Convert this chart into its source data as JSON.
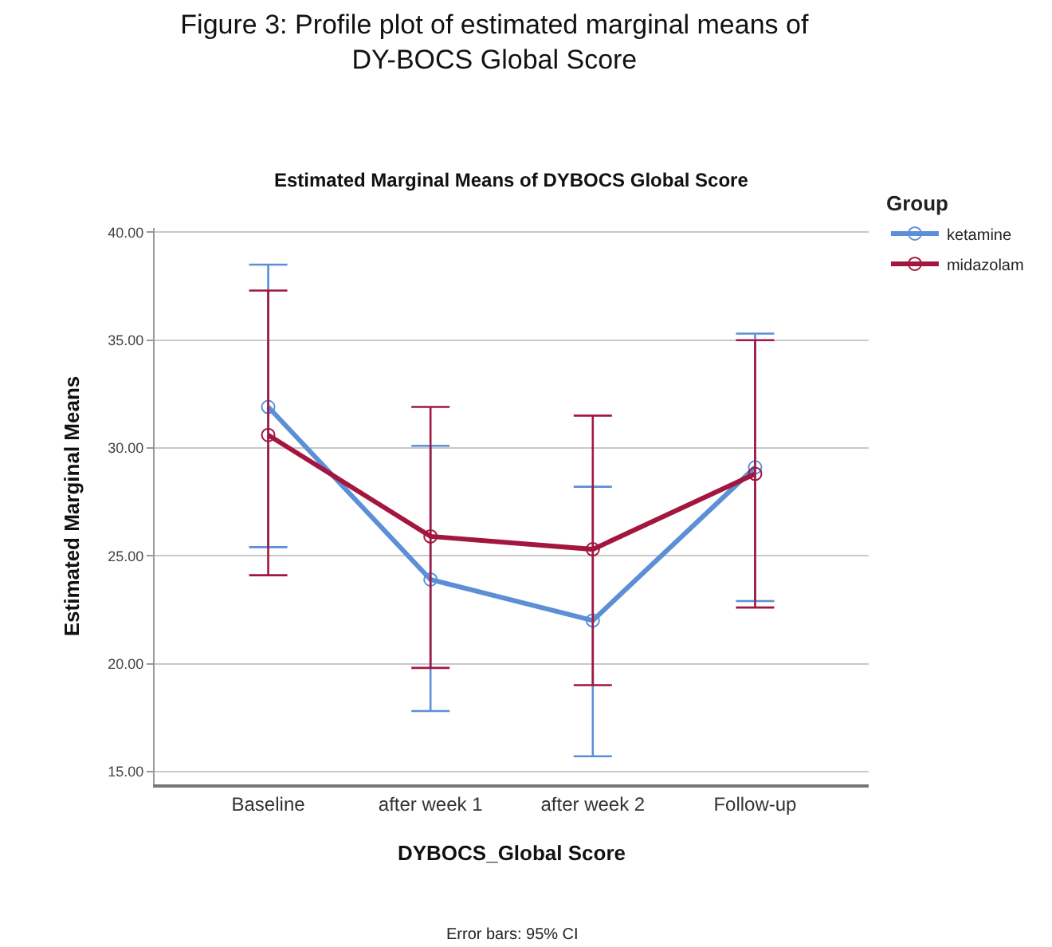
{
  "chart_data": {
    "type": "line",
    "title": "Figure 3: Profile plot of estimated marginal means of\nDY-BOCS Global Score",
    "subtitle": "Estimated Marginal Means of DYBOCS Global Score",
    "xlabel": "DYBOCS_Global Score",
    "ylabel": "Estimated Marginal Means",
    "legend_title": "Group",
    "categories": [
      "Baseline",
      "after week 1",
      "after week 2",
      "Follow-up"
    ],
    "series": [
      {
        "name": "ketamine",
        "color": "#5b8fd6",
        "values": [
          31.9,
          23.9,
          22.0,
          29.1
        ],
        "errors": [
          [
            25.4,
            38.5
          ],
          [
            17.8,
            30.1
          ],
          [
            15.7,
            28.2
          ],
          [
            22.9,
            35.3
          ]
        ]
      },
      {
        "name": "midazolam",
        "color": "#a3163f",
        "values": [
          30.6,
          25.9,
          25.3,
          28.8
        ],
        "errors": [
          [
            24.1,
            37.3
          ],
          [
            19.8,
            31.9
          ],
          [
            19.0,
            31.5
          ],
          [
            22.6,
            35.0
          ]
        ]
      }
    ],
    "ylim": [
      14.4,
      40.2
    ],
    "yticks": [
      {
        "value": 15,
        "label": "15.00"
      },
      {
        "value": 20,
        "label": "20.00"
      },
      {
        "value": 25,
        "label": "25.00"
      },
      {
        "value": 30,
        "label": "30.00"
      },
      {
        "value": 35,
        "label": "35.00"
      },
      {
        "value": 40,
        "label": "40.00"
      }
    ],
    "grid": "y",
    "legend": "top right",
    "marker": "circle",
    "line_style": "solid",
    "annotations": [
      "Error bars: 95% CI"
    ]
  }
}
